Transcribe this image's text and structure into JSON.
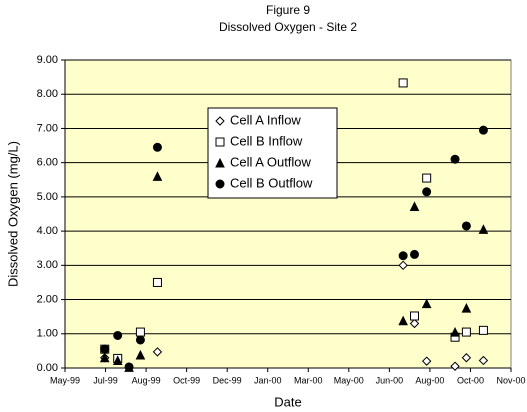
{
  "chart_data": {
    "type": "scatter",
    "title": "Figure 9",
    "subtitle": "Dissolved Oxygen - Site 2",
    "x_label": "Date",
    "y_label": "Dissolved Oxygen (mg/L)",
    "xlim": [
      36300,
      36850
    ],
    "xticks": [
      {
        "value": 36300,
        "label": "May-99"
      },
      {
        "value": 36350,
        "label": "Jul-99"
      },
      {
        "value": 36400,
        "label": "Aug-99"
      },
      {
        "value": 36450,
        "label": "Oct-99"
      },
      {
        "value": 36500,
        "label": "Dec-99"
      },
      {
        "value": 36550,
        "label": "Jan-00"
      },
      {
        "value": 36600,
        "label": "Mar-00"
      },
      {
        "value": 36650,
        "label": "May-00"
      },
      {
        "value": 36700,
        "label": "Jun-00"
      },
      {
        "value": 36750,
        "label": "Aug-00"
      },
      {
        "value": 36800,
        "label": "Oct-00"
      },
      {
        "value": 36850,
        "label": "Nov-00"
      }
    ],
    "ylim": [
      0,
      9
    ],
    "yticks": [
      {
        "value": 0,
        "label": "0.00"
      },
      {
        "value": 1,
        "label": "1.00"
      },
      {
        "value": 2,
        "label": "2.00"
      },
      {
        "value": 3,
        "label": "3.00"
      },
      {
        "value": 4,
        "label": "4.00"
      },
      {
        "value": 5,
        "label": "5.00"
      },
      {
        "value": 6,
        "label": "6.00"
      },
      {
        "value": 7,
        "label": "7.00"
      },
      {
        "value": 8,
        "label": "8.00"
      },
      {
        "value": 9,
        "label": "9.00"
      }
    ],
    "grid": true,
    "series": [
      {
        "name": "Cell A Inflow",
        "marker": "diamond",
        "color": "#000000",
        "x": [
          36349,
          36365,
          36414,
          36717,
          36731,
          36746,
          36781,
          36795,
          36816
        ],
        "values": [
          0.3,
          0.25,
          0.47,
          3.0,
          1.3,
          0.2,
          0.05,
          0.3,
          0.22
        ]
      },
      {
        "name": "Cell B Inflow",
        "marker": "square",
        "color": "#000000",
        "x": [
          36349,
          36365,
          36393,
          36414,
          36717,
          36731,
          36746,
          36781,
          36795,
          36816
        ],
        "values": [
          0.55,
          0.28,
          1.05,
          2.5,
          8.33,
          1.52,
          5.55,
          0.9,
          1.05,
          1.1
        ]
      },
      {
        "name": "Cell A Outflow",
        "marker": "triangle",
        "color": "#000000",
        "x": [
          36349,
          36365,
          36379,
          36393,
          36414,
          36717,
          36731,
          36746,
          36781,
          36795,
          36816
        ],
        "values": [
          0.3,
          0.22,
          0.02,
          0.38,
          5.6,
          1.38,
          4.72,
          1.88,
          1.05,
          1.75,
          4.05
        ]
      },
      {
        "name": "Cell B Outflow",
        "marker": "circle",
        "color": "#000000",
        "x": [
          36349,
          36365,
          36379,
          36393,
          36414,
          36717,
          36731,
          36746,
          36781,
          36795,
          36816
        ],
        "values": [
          0.55,
          0.95,
          0.03,
          0.82,
          6.45,
          3.28,
          3.32,
          5.15,
          6.1,
          4.15,
          6.95
        ]
      }
    ]
  }
}
